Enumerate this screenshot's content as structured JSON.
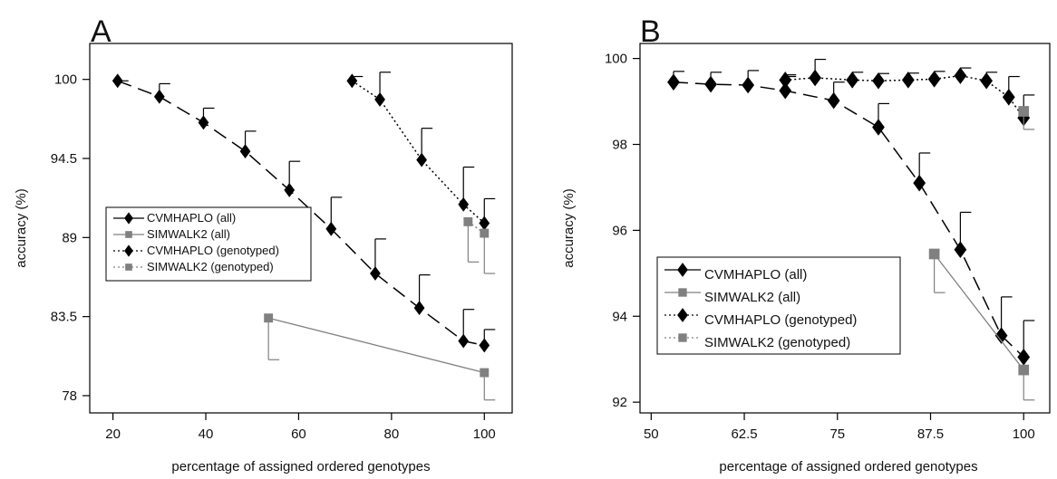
{
  "chart_data": [
    {
      "type": "line",
      "panel_label": "A",
      "xlabel": "percentage of assigned ordered genotypes",
      "ylabel": "accuracy (%)",
      "xlim": [
        15,
        106
      ],
      "ylim": [
        76.8,
        102.5
      ],
      "xticks": [
        20,
        40,
        60,
        80,
        100
      ],
      "xtick_labels": [
        "20",
        "40",
        "60",
        "80",
        "100"
      ],
      "yticks": [
        78,
        83.5,
        89,
        94.5,
        100
      ],
      "ytick_labels": [
        "78",
        "83.5",
        "89",
        "94.5",
        "100"
      ],
      "grid": false,
      "legend_position": "center-left",
      "series": [
        {
          "name": "CVMHAPLO (all)",
          "style": "longdash",
          "marker": "diamond",
          "color": "#000000",
          "x": [
            21,
            30,
            39.5,
            48.5,
            58,
            67,
            76.5,
            86,
            95.5,
            100
          ],
          "y": [
            99.9,
            98.8,
            97.0,
            95.0,
            92.3,
            89.6,
            86.5,
            84.1,
            81.8,
            81.5
          ],
          "err_upper": [
            99.9,
            99.7,
            98.0,
            96.4,
            94.3,
            91.8,
            88.9,
            86.4,
            84.0,
            82.6
          ]
        },
        {
          "name": "SIMWALK2 (all)",
          "style": "solid",
          "marker": "square",
          "color": "#808080",
          "x": [
            53.5,
            100
          ],
          "y": [
            83.4,
            79.6
          ],
          "err_lower": [
            80.5,
            77.7
          ]
        },
        {
          "name": "CVMHAPLO (genotyped)",
          "style": "dotted",
          "marker": "diamond",
          "color": "#000000",
          "x": [
            71.5,
            77.5,
            86.5,
            95.5,
            100
          ],
          "y": [
            99.9,
            98.6,
            94.4,
            91.3,
            90.0
          ],
          "err_upper": [
            100.2,
            100.5,
            96.6,
            93.9,
            91.7
          ]
        },
        {
          "name": "SIMWALK2 (genotyped)",
          "style": "dotted",
          "marker": "square",
          "color": "#808080",
          "x": [
            96.5,
            100
          ],
          "y": [
            90.1,
            89.3
          ],
          "err_lower": [
            87.3,
            86.5
          ]
        }
      ]
    },
    {
      "type": "line",
      "panel_label": "B",
      "xlabel": "percentage of assigned ordered genotypes",
      "ylabel": "accuracy (%)",
      "xlim": [
        48.5,
        103.5
      ],
      "ylim": [
        91.75,
        100.35
      ],
      "xticks": [
        50,
        62.5,
        75,
        87.5,
        100
      ],
      "xtick_labels": [
        "50",
        "62.5",
        "75",
        "87.5",
        "100"
      ],
      "yticks": [
        92,
        94,
        96,
        98,
        100
      ],
      "ytick_labels": [
        "92",
        "94",
        "96",
        "98",
        "100"
      ],
      "grid": false,
      "legend_position": "bottom-left",
      "series": [
        {
          "name": "CVMHAPLO (all)",
          "style": "longdash",
          "marker": "diamond",
          "color": "#000000",
          "x": [
            53,
            58,
            63,
            68,
            74.5,
            80.5,
            86,
            91.5,
            97,
            100
          ],
          "y": [
            99.45,
            99.4,
            99.38,
            99.25,
            99.02,
            98.4,
            97.1,
            95.55,
            93.55,
            93.05
          ],
          "err_upper": [
            99.7,
            99.68,
            99.72,
            99.58,
            99.45,
            98.95,
            97.8,
            96.42,
            94.45,
            93.9
          ]
        },
        {
          "name": "SIMWALK2 (all)",
          "style": "solid",
          "marker": "square",
          "color": "#808080",
          "x": [
            88,
            100
          ],
          "y": [
            95.45,
            92.75
          ],
          "err_lower": [
            94.55,
            92.05
          ]
        },
        {
          "name": "CVMHAPLO (genotyped)",
          "style": "dotted",
          "marker": "diamond",
          "color": "#000000",
          "x": [
            68,
            72,
            77,
            80.5,
            84.5,
            88,
            91.5,
            95,
            98,
            100
          ],
          "y": [
            99.5,
            99.55,
            99.5,
            99.48,
            99.5,
            99.52,
            99.6,
            99.48,
            99.1,
            98.62
          ],
          "err_upper": [
            99.62,
            99.98,
            99.68,
            99.65,
            99.66,
            99.7,
            99.78,
            99.68,
            99.58,
            99.15
          ]
        },
        {
          "name": "SIMWALK2 (genotyped)",
          "style": "dotted",
          "marker": "square",
          "color": "#808080",
          "x": [
            100
          ],
          "y": [
            98.77
          ],
          "err_lower": [
            98.35
          ]
        }
      ]
    }
  ]
}
